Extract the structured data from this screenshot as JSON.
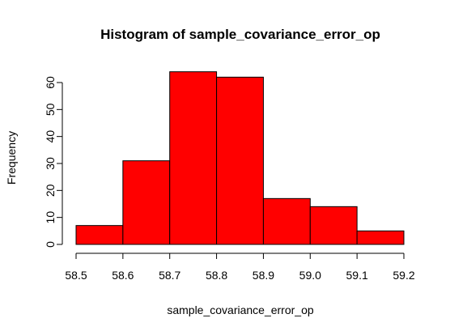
{
  "chart_data": {
    "type": "bar",
    "title": "Histogram of sample_covariance_error_op",
    "xlabel": "sample_covariance_error_op",
    "ylabel": "Frequency",
    "bins": [
      {
        "x0": 58.5,
        "x1": 58.6,
        "count": 7
      },
      {
        "x0": 58.6,
        "x1": 58.7,
        "count": 31
      },
      {
        "x0": 58.7,
        "x1": 58.8,
        "count": 64
      },
      {
        "x0": 58.8,
        "x1": 58.9,
        "count": 62
      },
      {
        "x0": 58.9,
        "x1": 59.0,
        "count": 17
      },
      {
        "x0": 59.0,
        "x1": 59.1,
        "count": 14
      },
      {
        "x0": 59.1,
        "x1": 59.2,
        "count": 5
      }
    ],
    "xlim": [
      58.5,
      59.2
    ],
    "ylim": [
      0,
      64
    ],
    "x_ticks": [
      "58.5",
      "58.6",
      "58.7",
      "58.8",
      "58.9",
      "59.0",
      "59.1",
      "59.2"
    ],
    "y_ticks": [
      "0",
      "10",
      "20",
      "30",
      "40",
      "50",
      "60"
    ],
    "bar_color": "#ff0000",
    "grid": false,
    "legend": "none"
  }
}
